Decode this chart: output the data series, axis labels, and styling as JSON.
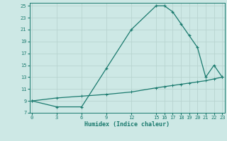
{
  "xlabel": "Humidex (Indice chaleur)",
  "main_x": [
    0,
    3,
    6,
    9,
    12,
    15,
    16,
    17,
    18,
    19,
    20,
    21,
    22,
    23
  ],
  "main_y": [
    9,
    8,
    8,
    14.5,
    21,
    25,
    25,
    24,
    22,
    20,
    18,
    13,
    15,
    13
  ],
  "base_x": [
    0,
    3,
    6,
    9,
    12,
    15,
    16,
    17,
    18,
    19,
    20,
    21,
    22,
    23
  ],
  "base_y": [
    9,
    9.5,
    9.8,
    10.1,
    10.5,
    11.2,
    11.4,
    11.6,
    11.8,
    12.0,
    12.2,
    12.4,
    12.7,
    13.0
  ],
  "line_color": "#1a7a6e",
  "bg_color": "#cde8e5",
  "grid_color": "#b8d4d0",
  "xlim": [
    -0.3,
    23.3
  ],
  "ylim": [
    7,
    25.5
  ],
  "xticks": [
    0,
    3,
    6,
    9,
    12,
    15,
    16,
    17,
    18,
    19,
    20,
    21,
    22,
    23
  ],
  "yticks": [
    7,
    9,
    11,
    13,
    15,
    17,
    19,
    21,
    23,
    25
  ]
}
